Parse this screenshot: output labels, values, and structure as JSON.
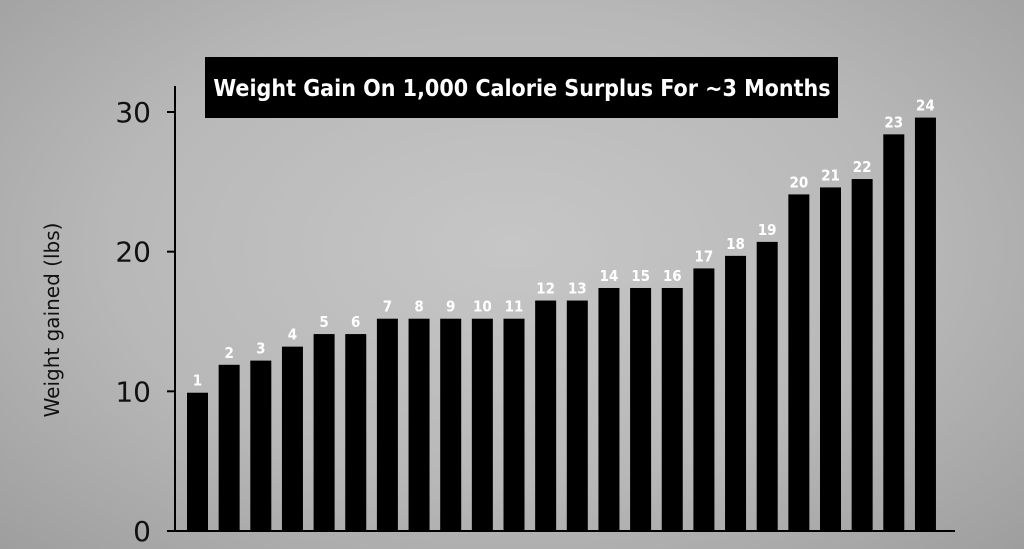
{
  "chart_data": {
    "type": "bar",
    "title": "Weight Gain On 1,000 Calorie Surplus For ~3 Months",
    "xlabel": "",
    "ylabel": "Weight gained (lbs)",
    "ylim": [
      0,
      30
    ],
    "yticks": [
      0,
      10,
      20,
      30
    ],
    "grid": false,
    "categories": [
      "1",
      "2",
      "3",
      "4",
      "5",
      "6",
      "7",
      "8",
      "9",
      "10",
      "11",
      "12",
      "13",
      "14",
      "15",
      "16",
      "17",
      "18",
      "19",
      "20",
      "21",
      "22",
      "23",
      "24"
    ],
    "values": [
      9.9,
      11.9,
      12.2,
      13.2,
      14.1,
      14.1,
      15.2,
      15.2,
      15.2,
      15.2,
      15.2,
      16.5,
      16.5,
      17.4,
      17.4,
      17.4,
      18.8,
      19.7,
      20.7,
      24.1,
      24.6,
      25.2,
      28.4,
      29.6
    ],
    "bar_color": "#000000",
    "label_color": "#ffffff",
    "title_background": "#000000"
  }
}
